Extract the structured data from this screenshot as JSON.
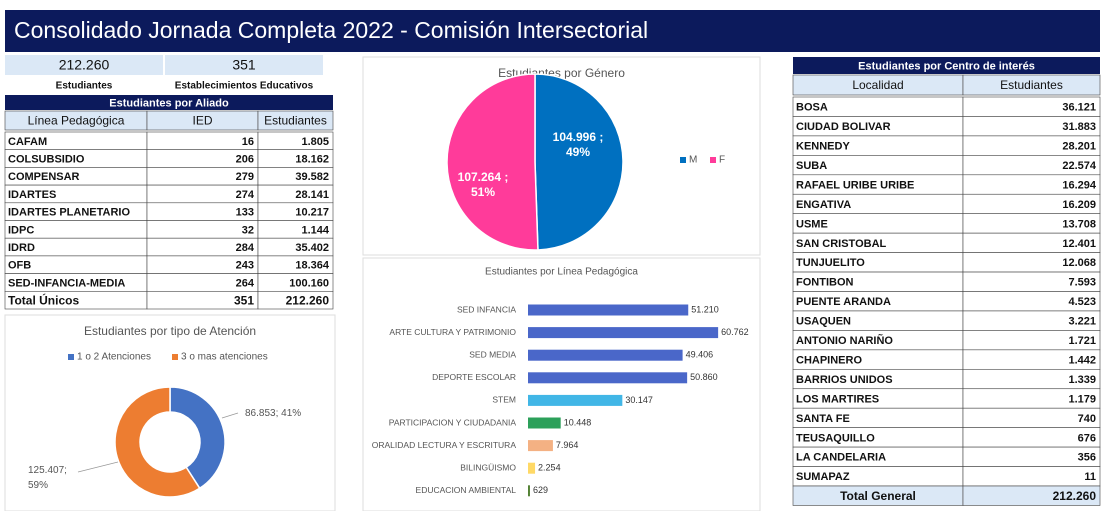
{
  "header": {
    "title": "Consolidado Jornada Completa 2022 - Comisión Intersectorial"
  },
  "kpis": [
    {
      "value": "212.260",
      "label": "Estudiantes"
    },
    {
      "value": "351",
      "label": "Establecimientos Educativos"
    }
  ],
  "aliado_table": {
    "title": "Estudiantes por Aliado",
    "columns": [
      "Línea Pedagógica",
      "IED",
      "Estudiantes"
    ],
    "rows": [
      [
        "CAFAM",
        "16",
        "1.805"
      ],
      [
        "COLSUBSIDIO",
        "206",
        "18.162"
      ],
      [
        "COMPENSAR",
        "279",
        "39.582"
      ],
      [
        "IDARTES",
        "274",
        "28.141"
      ],
      [
        "IDARTES PLANETARIO",
        "133",
        "10.217"
      ],
      [
        "IDPC",
        "32",
        "1.144"
      ],
      [
        "IDRD",
        "284",
        "35.402"
      ],
      [
        "OFB",
        "243",
        "18.364"
      ],
      [
        "SED-INFANCIA-MEDIA",
        "264",
        "100.160"
      ]
    ],
    "total": [
      "Total Únicos",
      "351",
      "212.260"
    ]
  },
  "centro_table": {
    "title": "Estudiantes por Centro de interés",
    "columns": [
      "Localidad",
      "Estudiantes"
    ],
    "rows": [
      [
        "BOSA",
        "36.121"
      ],
      [
        "CIUDAD BOLIVAR",
        "31.883"
      ],
      [
        "KENNEDY",
        "28.201"
      ],
      [
        "SUBA",
        "22.574"
      ],
      [
        "RAFAEL URIBE URIBE",
        "16.294"
      ],
      [
        "ENGATIVA",
        "16.209"
      ],
      [
        "USME",
        "13.708"
      ],
      [
        "SAN CRISTOBAL",
        "12.401"
      ],
      [
        "TUNJUELITO",
        "12.068"
      ],
      [
        "FONTIBON",
        "7.593"
      ],
      [
        "PUENTE ARANDA",
        "4.523"
      ],
      [
        "USAQUEN",
        "3.221"
      ],
      [
        "ANTONIO NARIÑO",
        "1.721"
      ],
      [
        "CHAPINERO",
        "1.442"
      ],
      [
        "BARRIOS UNIDOS",
        "1.339"
      ],
      [
        "LOS MARTIRES",
        "1.179"
      ],
      [
        "SANTA FE",
        "740"
      ],
      [
        "TEUSAQUILLO",
        "676"
      ],
      [
        "LA CANDELARIA",
        "356"
      ],
      [
        "SUMAPAZ",
        "11"
      ]
    ],
    "total": [
      "Total General",
      "212.260"
    ]
  },
  "chart_data": [
    {
      "type": "donut",
      "title": "Estudiantes por tipo de Atención",
      "categories": [
        "1 o 2 Atenciones",
        "3 o mas atenciones"
      ],
      "values": [
        86853,
        125407
      ],
      "value_labels": [
        [
          "86.853; 41%"
        ],
        [
          "125.407;",
          "59%"
        ]
      ],
      "colors": [
        "#4472c4",
        "#ed7d31"
      ]
    },
    {
      "type": "pie",
      "title": "Estudiantes por Género",
      "categories": [
        "M",
        "F"
      ],
      "values": [
        104996,
        107264
      ],
      "value_labels": [
        [
          "104.996 ;",
          "49%"
        ],
        [
          "107.264 ;",
          "51%"
        ]
      ],
      "colors": [
        "#0070c0",
        "#ff3b9a"
      ]
    },
    {
      "type": "barh",
      "title": "Estudiantes por Línea Pedagógica",
      "categories": [
        "SED INFANCIA",
        "ARTE CULTURA Y PATRIMONIO",
        "SED MEDIA",
        "DEPORTE ESCOLAR",
        "STEM",
        "PARTICIPACION Y CIUDADANIA",
        "ORALIDAD LECTURA Y ESCRITURA",
        "BILINGÜISMO",
        "EDUCACION AMBIENTAL"
      ],
      "values": [
        51210,
        60762,
        49406,
        50860,
        30147,
        10448,
        7964,
        2254,
        629
      ],
      "value_labels": [
        "51.210",
        "60.762",
        "49.406",
        "50.860",
        "30.147",
        "10.448",
        "7.964",
        "2.254",
        "629"
      ],
      "colors": [
        "#4a67c9",
        "#4a67c9",
        "#4a67c9",
        "#4a67c9",
        "#41b6e6",
        "#2ca05a",
        "#f4b183",
        "#ffd966",
        "#548235"
      ],
      "xlim": [
        0,
        62000
      ]
    }
  ]
}
